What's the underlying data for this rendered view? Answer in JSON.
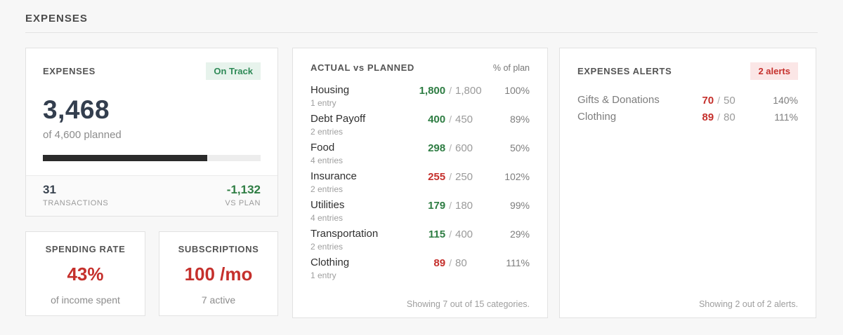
{
  "page": {
    "title": "EXPENSES",
    "value_separator": "/"
  },
  "colors": {
    "positive_green": "#2e7d43",
    "negative_red": "#c5302c",
    "on_track_badge_bg": "#e7f3ec",
    "alerts_badge_bg": "#fbe6e6",
    "amount_dark": "#333e4e",
    "progress_fill": "#2b2b2b"
  },
  "expenses_card": {
    "title": "EXPENSES",
    "badge": "On Track",
    "amount": "3,468",
    "subtitle": "of 4,600 planned",
    "progress_pct": "75.4%",
    "stats": [
      {
        "value": "31",
        "label": "TRANSACTIONS",
        "state": "dark"
      },
      {
        "value": "-1,132",
        "label": "VS PLAN",
        "state": "ok"
      }
    ]
  },
  "spending_rate_card": {
    "title": "SPENDING RATE",
    "value": "43%",
    "subtitle": "of income spent"
  },
  "subscriptions_card": {
    "title": "SUBSCRIPTIONS",
    "value": "100 /mo",
    "subtitle": "7 active"
  },
  "actual_vs_planned": {
    "title": "ACTUAL vs PLANNED",
    "column_label": "% of plan",
    "rows": [
      {
        "name": "Housing",
        "entries": "1 entry",
        "actual": "1,800",
        "planned": "1,800",
        "percent": "100%",
        "state": "ok"
      },
      {
        "name": "Debt Payoff",
        "entries": "2 entries",
        "actual": "400",
        "planned": "450",
        "percent": "89%",
        "state": "ok"
      },
      {
        "name": "Food",
        "entries": "4 entries",
        "actual": "298",
        "planned": "600",
        "percent": "50%",
        "state": "ok"
      },
      {
        "name": "Insurance",
        "entries": "2 entries",
        "actual": "255",
        "planned": "250",
        "percent": "102%",
        "state": "over"
      },
      {
        "name": "Utilities",
        "entries": "4 entries",
        "actual": "179",
        "planned": "180",
        "percent": "99%",
        "state": "ok"
      },
      {
        "name": "Transportation",
        "entries": "2 entries",
        "actual": "115",
        "planned": "400",
        "percent": "29%",
        "state": "ok"
      },
      {
        "name": "Clothing",
        "entries": "1 entry",
        "actual": "89",
        "planned": "80",
        "percent": "111%",
        "state": "over"
      }
    ],
    "footer": "Showing 7 out of 15 categories."
  },
  "alerts_card": {
    "title": "EXPENSES ALERTS",
    "badge": "2 alerts",
    "rows": [
      {
        "name": "Gifts & Donations",
        "actual": "70",
        "planned": "50",
        "percent": "140%",
        "state": "over"
      },
      {
        "name": "Clothing",
        "actual": "89",
        "planned": "80",
        "percent": "111%",
        "state": "over"
      }
    ],
    "footer": "Showing 2 out of 2 alerts."
  }
}
